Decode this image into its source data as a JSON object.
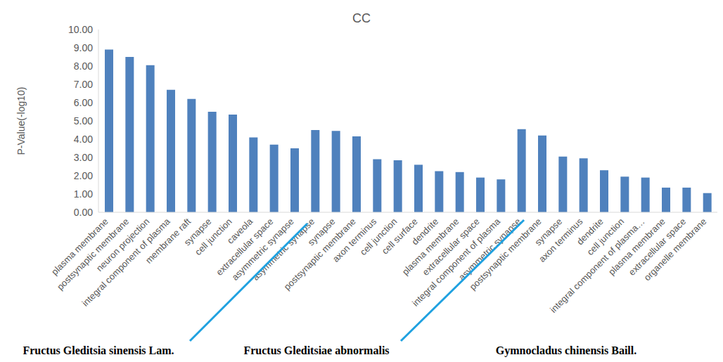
{
  "chart_data": {
    "type": "bar",
    "title": "CC",
    "y_label": "P-Value(-log10)",
    "categories": [
      "plasma membrane",
      "postsynaptic membrane",
      "neuron projection",
      "integral component of plasma",
      "membrane raft",
      "synapse",
      "cell junction",
      "caveola",
      "extracellular space",
      "asymmetric synapse",
      "asymmetric synapse",
      "synapse",
      "postsynaptic membrane",
      "axon terminus",
      "cell junction",
      "cell surface",
      "dendrite",
      "plasma membrane",
      "extracellular space",
      "integral component of plasma",
      "asymmetric synapse",
      "postsynaptic membrane",
      "synapse",
      "axon terminus",
      "dendrite",
      "cell junction",
      "integral component of plasma…",
      "plasma membrane",
      "extracellular space",
      "organelle membrane"
    ],
    "values": [
      8.9,
      8.5,
      8.05,
      6.7,
      6.2,
      5.5,
      5.35,
      4.1,
      3.7,
      3.5,
      4.5,
      4.45,
      4.15,
      2.9,
      2.85,
      2.6,
      2.25,
      2.2,
      1.9,
      1.8,
      4.55,
      4.2,
      3.05,
      2.95,
      2.3,
      1.95,
      1.9,
      1.35,
      1.35,
      1.05
    ],
    "color": "#4f81bd",
    "ylim": [
      0,
      10
    ],
    "yticks": [
      {
        "value": 0,
        "label": "0.00"
      },
      {
        "value": 1,
        "label": "1.00"
      },
      {
        "value": 2,
        "label": "2.00"
      },
      {
        "value": 3,
        "label": "3.00"
      },
      {
        "value": 4,
        "label": "4.00"
      },
      {
        "value": 5,
        "label": "5.00"
      },
      {
        "value": 6,
        "label": "6.00"
      },
      {
        "value": 7,
        "label": "7.00"
      },
      {
        "value": 8,
        "label": "8.00"
      },
      {
        "value": 9,
        "label": "9.00"
      },
      {
        "value": 10,
        "label": "10.00"
      }
    ],
    "grid": false,
    "annotations": [
      "Fructus Gleditsia sinensis Lam.",
      "Fructus Gleditsiae abnormalis",
      "Gymnocladus chinensis Baill."
    ]
  }
}
